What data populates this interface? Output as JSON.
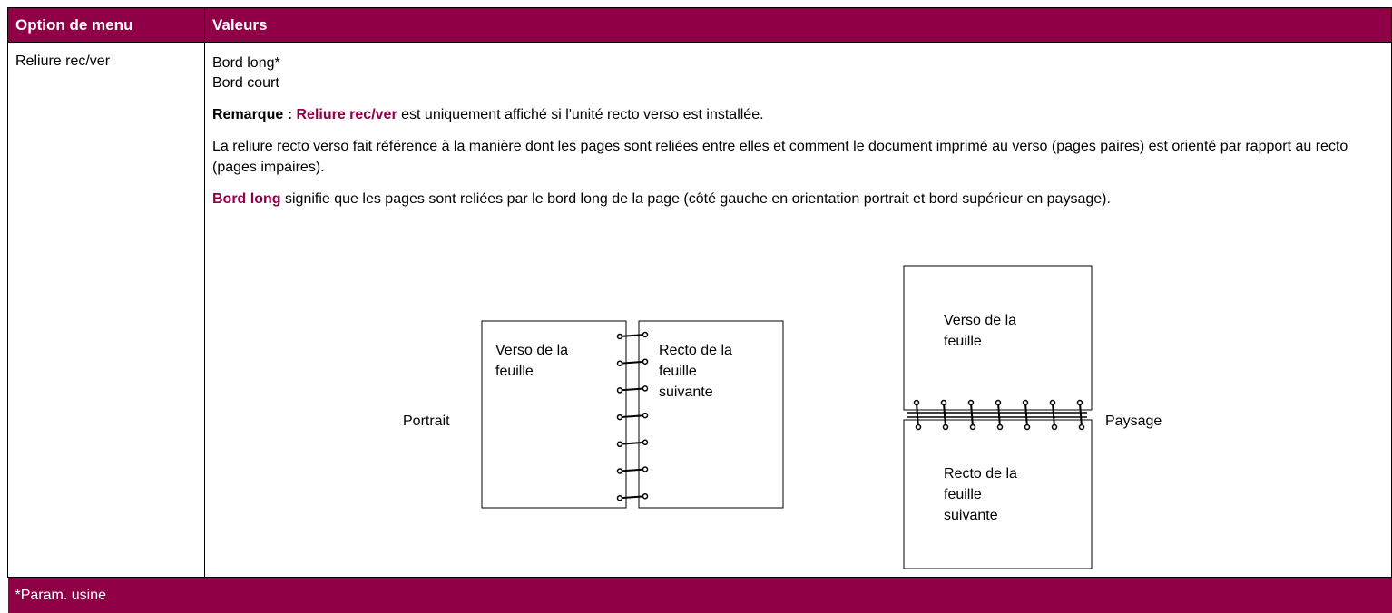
{
  "table": {
    "headers": [
      "Option de menu",
      "Valeurs"
    ],
    "rows": [
      {
        "option": "Reliure rec/ver",
        "values": [
          "Bord long*",
          "Bord court"
        ],
        "note": {
          "label": "Remarque :",
          "term": "Reliure rec/ver",
          "text": "est uniquement affiché si l'unité recto verso est installée."
        },
        "paragraph": "La reliure recto verso fait référence à la manière dont les pages sont reliées entre elles et comment le document imprimé au verso (pages paires) est orienté par rapport au recto (pages impaires).",
        "definition": {
          "term": "Bord long",
          "text": "signifie que les pages sont reliées par le bord long de la page (côté gauche en orientation portrait et bord supérieur en paysage)."
        }
      }
    ],
    "footer": "*Param. usine"
  },
  "diagram": {
    "portrait": {
      "label": "Portrait",
      "left": [
        "Verso de la",
        "feuille"
      ],
      "right": [
        "Recto de la",
        "feuille",
        "suivante"
      ]
    },
    "landscape": {
      "label": "Paysage",
      "top": [
        "Verso de la",
        "feuille"
      ],
      "bottom": [
        "Recto de la",
        "feuille",
        "suivante"
      ]
    }
  }
}
